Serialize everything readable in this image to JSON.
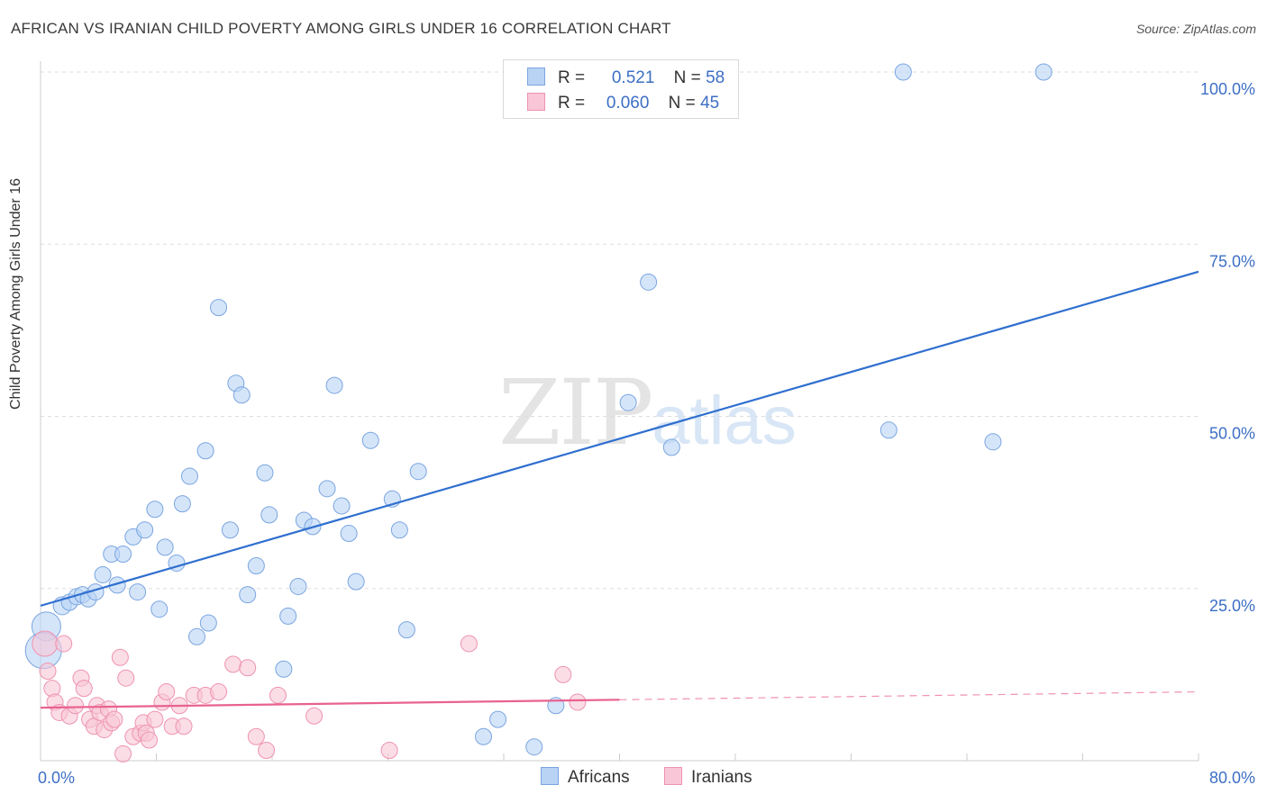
{
  "header": {
    "title": "AFRICAN VS IRANIAN CHILD POVERTY AMONG GIRLS UNDER 16 CORRELATION CHART",
    "source": "Source: ZipAtlas.com"
  },
  "watermark": {
    "zip": "ZIP",
    "atlas": "atlas"
  },
  "legend": {
    "rows": [
      {
        "r_label": "R =",
        "r_value": "0.521",
        "n_label": "N =",
        "n_value": "58"
      },
      {
        "r_label": "R =",
        "r_value": "0.060",
        "n_label": "N =",
        "n_value": "45"
      }
    ],
    "series_names": [
      "Africans",
      "Iranians"
    ]
  },
  "colors": {
    "africans_fill": "#b9d3f5",
    "africans_stroke": "#7aa5e0",
    "africans_line": "#2f6fcf",
    "iranians_fill": "#f8c6d6",
    "iranians_stroke": "#ee93b1",
    "iranians_line": "#e8628f",
    "axis_text": "#3d6fc4",
    "grid": "#dddddd"
  },
  "chart_data": {
    "type": "scatter",
    "title": "AFRICAN VS IRANIAN CHILD POVERTY AMONG GIRLS UNDER 16 CORRELATION CHART",
    "xlabel": "",
    "ylabel": "Child Poverty Among Girls Under 16",
    "xlim": [
      0,
      80
    ],
    "ylim": [
      0,
      100
    ],
    "x_tick_labels": [
      "0.0%",
      "80.0%"
    ],
    "y_ticks": [
      25,
      50,
      75,
      100
    ],
    "y_tick_labels": [
      "25.0%",
      "50.0%",
      "75.0%",
      "100.0%"
    ],
    "grid": true,
    "legend_position": "top-center",
    "series": [
      {
        "name": "Africans",
        "r": 0.521,
        "n": 58,
        "trend": {
          "x": [
            0,
            80
          ],
          "y": [
            22.5,
            71.0
          ],
          "dashed_from": null
        },
        "points": [
          [
            0.4,
            19.5,
            16
          ],
          [
            0.2,
            16.0,
            20
          ],
          [
            1.5,
            22.5,
            10
          ],
          [
            2.0,
            23.0,
            9
          ],
          [
            2.5,
            23.8,
            9
          ],
          [
            2.9,
            24.1,
            9
          ],
          [
            3.3,
            23.5,
            9
          ],
          [
            3.8,
            24.5,
            9
          ],
          [
            4.3,
            27.0,
            9
          ],
          [
            4.9,
            30.0,
            9
          ],
          [
            5.3,
            25.5,
            9
          ],
          [
            5.7,
            30.0,
            9
          ],
          [
            6.4,
            32.5,
            9
          ],
          [
            6.7,
            24.5,
            9
          ],
          [
            7.2,
            33.5,
            9
          ],
          [
            7.9,
            36.5,
            9
          ],
          [
            8.2,
            22.0,
            9
          ],
          [
            8.6,
            31.0,
            9
          ],
          [
            9.4,
            28.7,
            9
          ],
          [
            9.8,
            37.3,
            9
          ],
          [
            10.3,
            41.3,
            9
          ],
          [
            10.8,
            18.0,
            9
          ],
          [
            11.4,
            45.0,
            9
          ],
          [
            11.6,
            20.0,
            9
          ],
          [
            12.3,
            65.8,
            9
          ],
          [
            13.1,
            33.5,
            9
          ],
          [
            13.5,
            54.8,
            9
          ],
          [
            13.9,
            53.1,
            9
          ],
          [
            14.3,
            24.1,
            9
          ],
          [
            14.9,
            28.3,
            9
          ],
          [
            15.5,
            41.8,
            9
          ],
          [
            15.8,
            35.7,
            9
          ],
          [
            16.8,
            13.3,
            9
          ],
          [
            17.1,
            21.0,
            9
          ],
          [
            17.8,
            25.3,
            9
          ],
          [
            18.2,
            34.9,
            9
          ],
          [
            18.8,
            34.0,
            9
          ],
          [
            19.8,
            39.5,
            9
          ],
          [
            20.3,
            54.5,
            9
          ],
          [
            20.8,
            37.0,
            9
          ],
          [
            21.3,
            33.0,
            9
          ],
          [
            21.8,
            26.0,
            9
          ],
          [
            22.8,
            46.5,
            9
          ],
          [
            24.3,
            38.0,
            9
          ],
          [
            24.8,
            33.5,
            9
          ],
          [
            25.3,
            19.0,
            9
          ],
          [
            26.1,
            42.0,
            9
          ],
          [
            30.6,
            3.5,
            9
          ],
          [
            31.6,
            6.0,
            9
          ],
          [
            34.1,
            2.0,
            9
          ],
          [
            35.6,
            8.0,
            9
          ],
          [
            40.6,
            52.0,
            9
          ],
          [
            42.0,
            69.5,
            9
          ],
          [
            43.6,
            45.5,
            9
          ],
          [
            58.6,
            48.0,
            9
          ],
          [
            59.6,
            100.0,
            9
          ],
          [
            65.8,
            46.3,
            9
          ],
          [
            69.3,
            100.0,
            9
          ]
        ]
      },
      {
        "name": "Iranians",
        "r": 0.06,
        "n": 45,
        "trend": {
          "x": [
            0,
            80
          ],
          "y": [
            7.7,
            10.0
          ],
          "dashed_from": 40
        },
        "points": [
          [
            0.3,
            17.0,
            14
          ],
          [
            0.5,
            13.0,
            9
          ],
          [
            0.8,
            10.5,
            9
          ],
          [
            1.0,
            8.5,
            9
          ],
          [
            1.3,
            7.0,
            9
          ],
          [
            1.6,
            17.0,
            9
          ],
          [
            2.0,
            6.5,
            9
          ],
          [
            2.4,
            8.0,
            9
          ],
          [
            2.8,
            12.0,
            9
          ],
          [
            3.0,
            10.5,
            9
          ],
          [
            3.4,
            6.0,
            9
          ],
          [
            3.7,
            5.0,
            9
          ],
          [
            3.9,
            8.0,
            9
          ],
          [
            4.1,
            7.0,
            9
          ],
          [
            4.4,
            4.5,
            9
          ],
          [
            4.7,
            7.5,
            9
          ],
          [
            4.9,
            5.5,
            9
          ],
          [
            5.1,
            6.0,
            9
          ],
          [
            5.5,
            15.0,
            9
          ],
          [
            5.7,
            1.0,
            9
          ],
          [
            5.9,
            12.0,
            9
          ],
          [
            6.4,
            3.5,
            9
          ],
          [
            6.9,
            4.0,
            9
          ],
          [
            7.1,
            5.5,
            9
          ],
          [
            7.3,
            4.0,
            9
          ],
          [
            7.5,
            3.0,
            9
          ],
          [
            7.9,
            6.0,
            9
          ],
          [
            8.4,
            8.5,
            9
          ],
          [
            8.7,
            10.0,
            9
          ],
          [
            9.1,
            5.0,
            9
          ],
          [
            9.6,
            8.0,
            9
          ],
          [
            9.9,
            5.0,
            9
          ],
          [
            10.6,
            9.5,
            9
          ],
          [
            11.4,
            9.5,
            9
          ],
          [
            12.3,
            10.0,
            9
          ],
          [
            13.3,
            14.0,
            9
          ],
          [
            14.3,
            13.5,
            9
          ],
          [
            14.9,
            3.5,
            9
          ],
          [
            15.6,
            1.5,
            9
          ],
          [
            16.4,
            9.5,
            9
          ],
          [
            18.9,
            6.5,
            9
          ],
          [
            24.1,
            1.5,
            9
          ],
          [
            29.6,
            17.0,
            9
          ],
          [
            36.1,
            12.5,
            9
          ],
          [
            37.1,
            8.5,
            9
          ]
        ]
      }
    ]
  }
}
